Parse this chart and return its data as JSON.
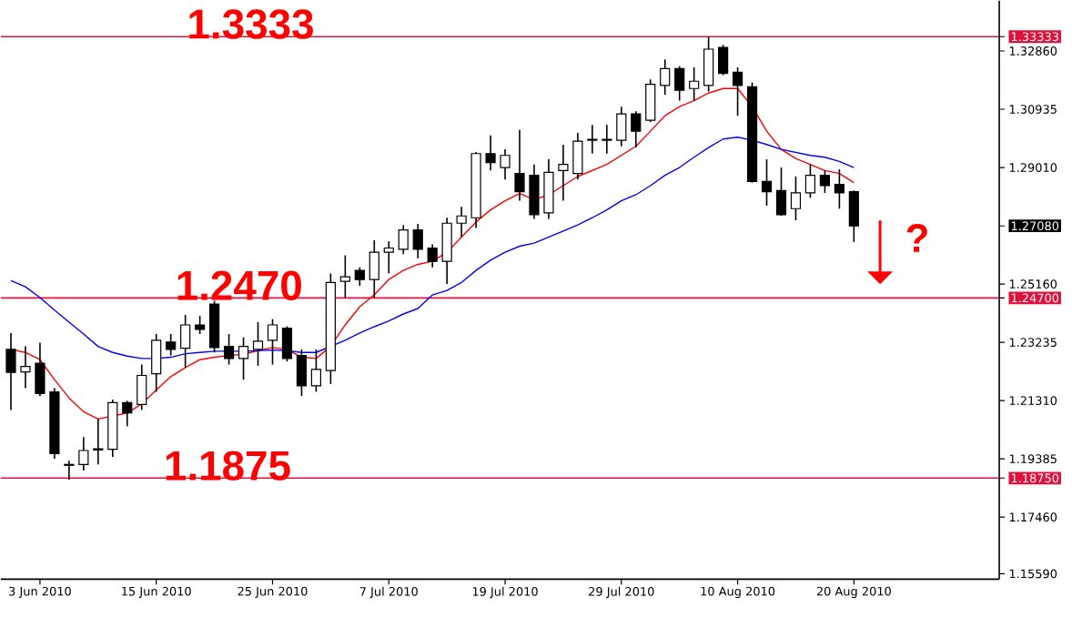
{
  "chart_data": {
    "type": "candlestick",
    "categories": [
      null,
      null,
      "3 Jun 2010",
      null,
      null,
      null,
      null,
      null,
      null,
      null,
      "15 Jun 2010",
      null,
      null,
      null,
      null,
      null,
      null,
      null,
      "25 Jun 2010",
      null,
      null,
      null,
      null,
      null,
      null,
      null,
      "7 Jul 2010",
      null,
      null,
      null,
      null,
      null,
      null,
      null,
      "19 Jul 2010",
      null,
      null,
      null,
      null,
      null,
      null,
      null,
      "29 Jul 2010",
      null,
      null,
      null,
      null,
      null,
      null,
      null,
      "10 Aug 2010",
      null,
      null,
      null,
      null,
      null,
      null,
      null,
      "20 Aug 2010"
    ],
    "ohlc": [
      [
        1.23,
        1.2354,
        1.21,
        1.2224
      ],
      [
        1.2226,
        1.231,
        1.2172,
        1.2244
      ],
      [
        1.2254,
        1.2322,
        1.2146,
        1.2154
      ],
      [
        1.216,
        1.2172,
        1.1939,
        1.1956
      ],
      [
        1.192,
        1.1932,
        1.187,
        1.1917
      ],
      [
        1.192,
        1.201,
        1.19,
        1.1966
      ],
      [
        1.1972,
        1.207,
        1.192,
        1.1968
      ],
      [
        1.197,
        1.2134,
        1.1945,
        1.2124
      ],
      [
        1.2124,
        1.213,
        1.2046,
        1.209
      ],
      [
        1.2118,
        1.225,
        1.21,
        1.2214
      ],
      [
        1.222,
        1.2351,
        1.216,
        1.233
      ],
      [
        1.2324,
        1.2351,
        1.228,
        1.23
      ],
      [
        1.2304,
        1.2414,
        1.224,
        1.2381
      ],
      [
        1.2381,
        1.2411,
        1.2351,
        1.2366
      ],
      [
        1.245,
        1.2461,
        1.229,
        1.2306
      ],
      [
        1.231,
        1.2351,
        1.225,
        1.227
      ],
      [
        1.227,
        1.234,
        1.22,
        1.231
      ],
      [
        1.23,
        1.239,
        1.2246,
        1.2327
      ],
      [
        1.233,
        1.24,
        1.225,
        1.2381
      ],
      [
        1.237,
        1.2376,
        1.226,
        1.227
      ],
      [
        1.228,
        1.23,
        1.2146,
        1.218
      ],
      [
        1.218,
        1.23,
        1.216,
        1.2234
      ],
      [
        1.223,
        1.2551,
        1.2186,
        1.2521
      ],
      [
        1.2525,
        1.2611,
        1.2471,
        1.254
      ],
      [
        1.2561,
        1.2571,
        1.251,
        1.2531
      ],
      [
        1.2531,
        1.2661,
        1.2471,
        1.2621
      ],
      [
        1.2621,
        1.2657,
        1.2551,
        1.2635
      ],
      [
        1.2631,
        1.2711,
        1.2615,
        1.2695
      ],
      [
        1.2695,
        1.2715,
        1.2601,
        1.2631
      ],
      [
        1.2635,
        1.2647,
        1.2571,
        1.2591
      ],
      [
        1.2591,
        1.2735,
        1.2516,
        1.2717
      ],
      [
        1.2717,
        1.2771,
        1.2671,
        1.2741
      ],
      [
        1.2735,
        1.2952,
        1.2701,
        1.2947
      ],
      [
        1.2947,
        1.3007,
        1.2891,
        1.2917
      ],
      [
        1.2901,
        1.2961,
        1.2861,
        1.2941
      ],
      [
        1.2881,
        1.3025,
        1.2791,
        1.2821
      ],
      [
        1.2875,
        1.2911,
        1.2731,
        1.2745
      ],
      [
        1.2751,
        1.2928,
        1.2731,
        1.2885
      ],
      [
        1.2891,
        1.2976,
        1.2791,
        1.2911
      ],
      [
        1.2881,
        1.3015,
        1.2861,
        1.2988
      ],
      [
        1.2991,
        1.3042,
        1.2947,
        1.2994
      ],
      [
        1.2994,
        1.3042,
        1.2947,
        1.2991
      ],
      [
        1.2991,
        1.3102,
        1.2971,
        1.3078
      ],
      [
        1.3078,
        1.3087,
        1.2967,
        1.3021
      ],
      [
        1.3057,
        1.3192,
        1.3051,
        1.3176
      ],
      [
        1.3172,
        1.3258,
        1.3141,
        1.3228
      ],
      [
        1.3228,
        1.3236,
        1.3122,
        1.3156
      ],
      [
        1.3162,
        1.3232,
        1.3122,
        1.3186
      ],
      [
        1.3172,
        1.3333,
        1.3152,
        1.3292
      ],
      [
        1.3298,
        1.3306,
        1.3206,
        1.3212
      ],
      [
        1.3216,
        1.3232,
        1.3072,
        1.3172
      ],
      [
        1.3168,
        1.3182,
        1.2851,
        1.2855
      ],
      [
        1.2855,
        1.2928,
        1.2775,
        1.2821
      ],
      [
        1.2825,
        1.2901,
        1.2742,
        1.2745
      ],
      [
        1.2765,
        1.2871,
        1.2727,
        1.2817
      ],
      [
        1.2817,
        1.2911,
        1.2801,
        1.2875
      ],
      [
        1.2875,
        1.2891,
        1.2817,
        1.2841
      ],
      [
        1.2845,
        1.2895,
        1.2765,
        1.2817
      ],
      [
        1.2821,
        1.2825,
        1.2655,
        1.2708
      ]
    ],
    "series": [
      {
        "type": "line",
        "color": "#ff0000",
        "values": [
          1.23,
          1.229,
          1.2266,
          1.22,
          1.214,
          1.2094,
          1.207,
          1.208,
          1.209,
          1.212,
          1.2166,
          1.221,
          1.224,
          1.2266,
          1.2274,
          1.228,
          1.2284,
          1.2296,
          1.2306,
          1.23,
          1.2274,
          1.227,
          1.231,
          1.2381,
          1.2441,
          1.248,
          1.2531,
          1.2561,
          1.2581,
          1.2591,
          1.2621,
          1.2671,
          1.2721,
          1.2761,
          1.2791,
          1.2815,
          1.2795,
          1.2811,
          1.2841,
          1.2871,
          1.2891,
          1.2911,
          1.2941,
          1.2971,
          1.3021,
          1.3072,
          1.3102,
          1.3122,
          1.3147,
          1.3162,
          1.3162,
          1.3102,
          1.3021,
          1.2961,
          1.2931,
          1.2911,
          1.2891,
          1.2881,
          1.2851
        ]
      },
      {
        "type": "line",
        "color": "#0000ff",
        "values": [
          1.2527,
          1.2507,
          1.2471,
          1.243,
          1.239,
          1.2351,
          1.231,
          1.229,
          1.2278,
          1.227,
          1.227,
          1.2274,
          1.2286,
          1.229,
          1.2294,
          1.2294,
          1.2294,
          1.2296,
          1.2298,
          1.2296,
          1.229,
          1.229,
          1.231,
          1.233,
          1.2354,
          1.2375,
          1.2394,
          1.2417,
          1.2435,
          1.248,
          1.2495,
          1.2521,
          1.2561,
          1.2595,
          1.2621,
          1.2641,
          1.2651,
          1.2671,
          1.2691,
          1.2711,
          1.2735,
          1.2761,
          1.2791,
          1.2811,
          1.2841,
          1.2875,
          1.2901,
          1.2935,
          1.2967,
          1.2995,
          1.3001,
          1.2991,
          1.2977,
          1.2961,
          1.2951,
          1.2941,
          1.2935,
          1.2921,
          1.2901
        ]
      }
    ],
    "ylim": [
      1.1541,
      1.3452
    ],
    "yticks": [
      {
        "value": 1.1559,
        "label": "1.15590"
      },
      {
        "value": 1.1746,
        "label": "1.17460"
      },
      {
        "value": 1.1875,
        "label": "1.18750"
      },
      {
        "value": 1.19385,
        "label": "1.19385"
      },
      {
        "value": 1.2131,
        "label": "1.21310"
      },
      {
        "value": 1.23235,
        "label": "1.23235"
      },
      {
        "value": 1.247,
        "label": "1.24700"
      },
      {
        "value": 1.2516,
        "label": "1.25160"
      },
      {
        "value": 1.2708,
        "label": "1.27080"
      },
      {
        "value": 1.2901,
        "label": "1.29010"
      },
      {
        "value": 1.30935,
        "label": "1.30935"
      },
      {
        "value": 1.3286,
        "label": "1.32860"
      },
      {
        "value": 1.33333,
        "label": "1.33333"
      }
    ],
    "ref_lines": [
      {
        "axis": "y",
        "value": 1.33333,
        "label": "1.3333",
        "color": "#dc143c"
      },
      {
        "axis": "y",
        "value": 1.247,
        "label": "1.2470",
        "color": "#dc143c"
      },
      {
        "axis": "y",
        "value": 1.1875,
        "label": "1.1875",
        "color": "#dc143c"
      }
    ],
    "annotations": [
      "?"
    ]
  }
}
